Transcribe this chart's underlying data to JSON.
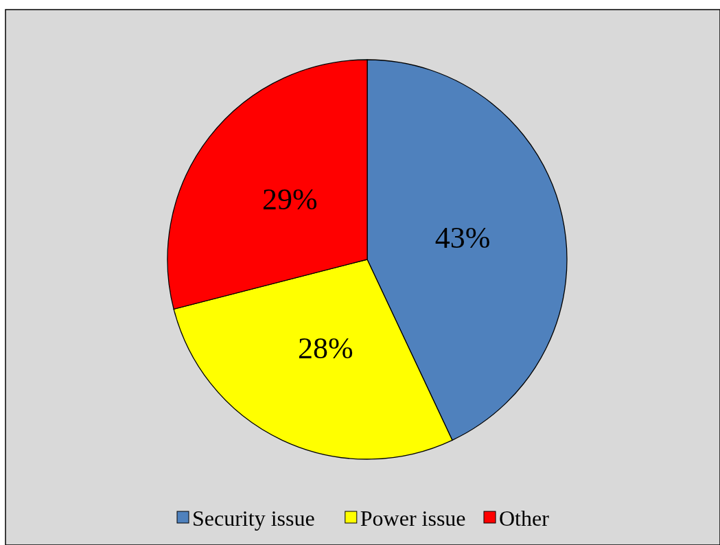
{
  "chart_data": {
    "type": "pie",
    "categories": [
      "Security issue",
      "Power issue",
      "Other"
    ],
    "values": [
      43,
      28,
      29
    ],
    "colors": [
      "#4f81bd",
      "#ffff00",
      "#ff0000"
    ],
    "value_labels": [
      "43%",
      "28%",
      "29%"
    ],
    "legend": "bottom"
  }
}
